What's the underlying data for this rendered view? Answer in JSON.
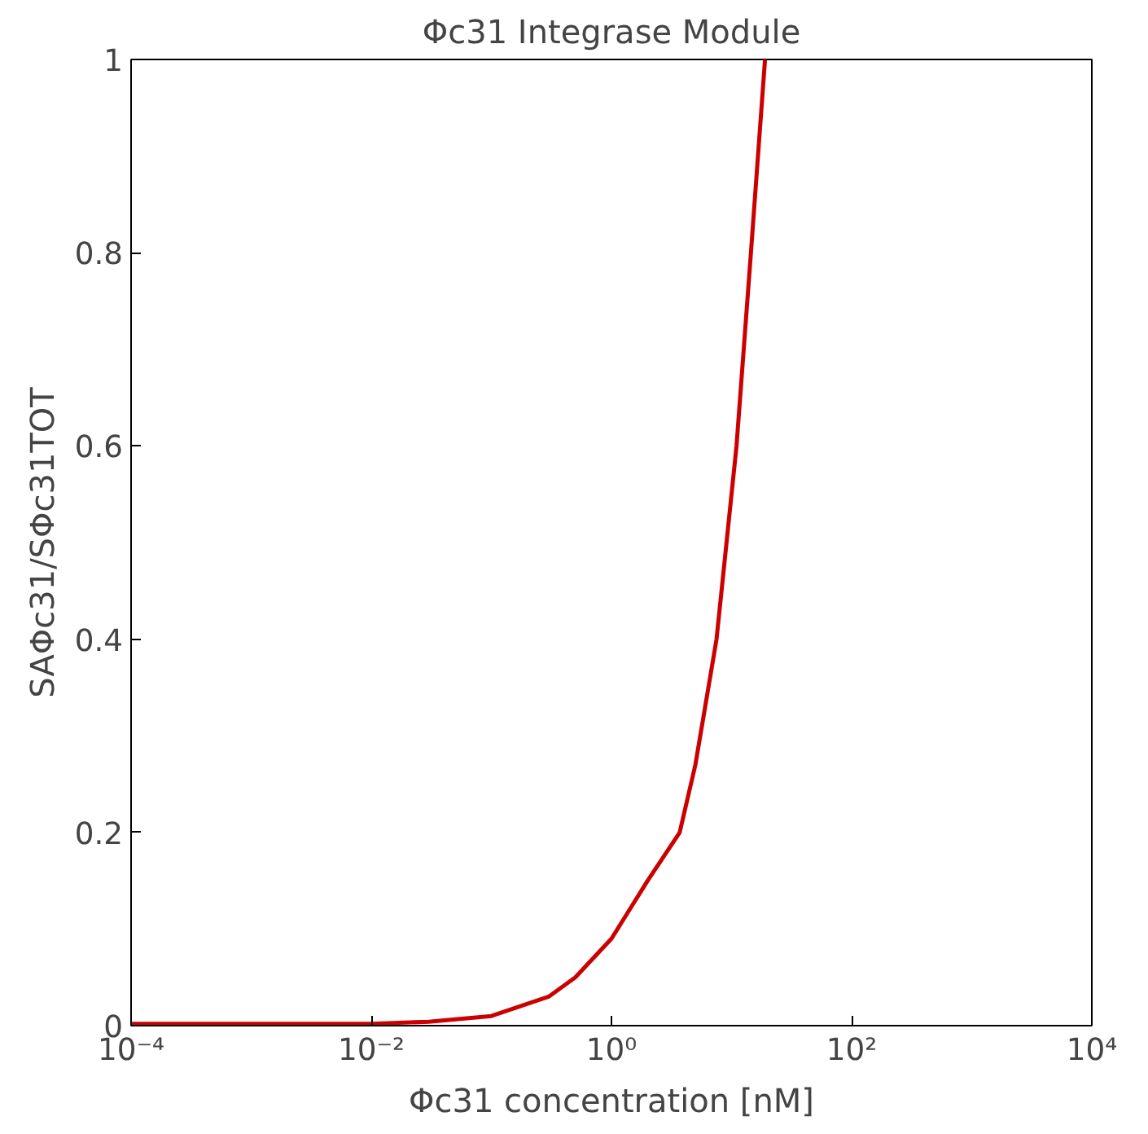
{
  "chart_data": {
    "type": "line",
    "title": "Φc31 Integrase Module",
    "xlabel": "Φc31 concentration [nM]",
    "ylabel": "SAΦc31/SΦc31TOT",
    "log": "x",
    "x": [
      0.0001,
      0.001,
      0.01,
      0.03,
      0.1,
      0.3,
      0.5,
      1,
      2,
      3.7,
      5,
      7.5,
      11,
      14.5,
      19
    ],
    "series": [
      {
        "color": "#cc0000",
        "values": [
          0.002,
          0.002,
          0.002,
          0.004,
          0.01,
          0.03,
          0.05,
          0.09,
          0.15,
          0.2,
          0.27,
          0.4,
          0.6,
          0.8,
          1.0
        ]
      }
    ],
    "xlim": [
      0.0001,
      10000
    ],
    "xticks": [
      {
        "value": 0.0001,
        "label": "10⁻⁴"
      },
      {
        "value": 0.01,
        "label": "10⁻²"
      },
      {
        "value": 1,
        "label": "10⁰"
      },
      {
        "value": 100,
        "label": "10²"
      },
      {
        "value": 10000,
        "label": "10⁴"
      }
    ],
    "ylim": [
      0,
      1
    ],
    "yticks": [
      0,
      0.2,
      0.4,
      0.6,
      0.8,
      1
    ],
    "grid": false,
    "marker": "none",
    "line_style": "solid"
  }
}
